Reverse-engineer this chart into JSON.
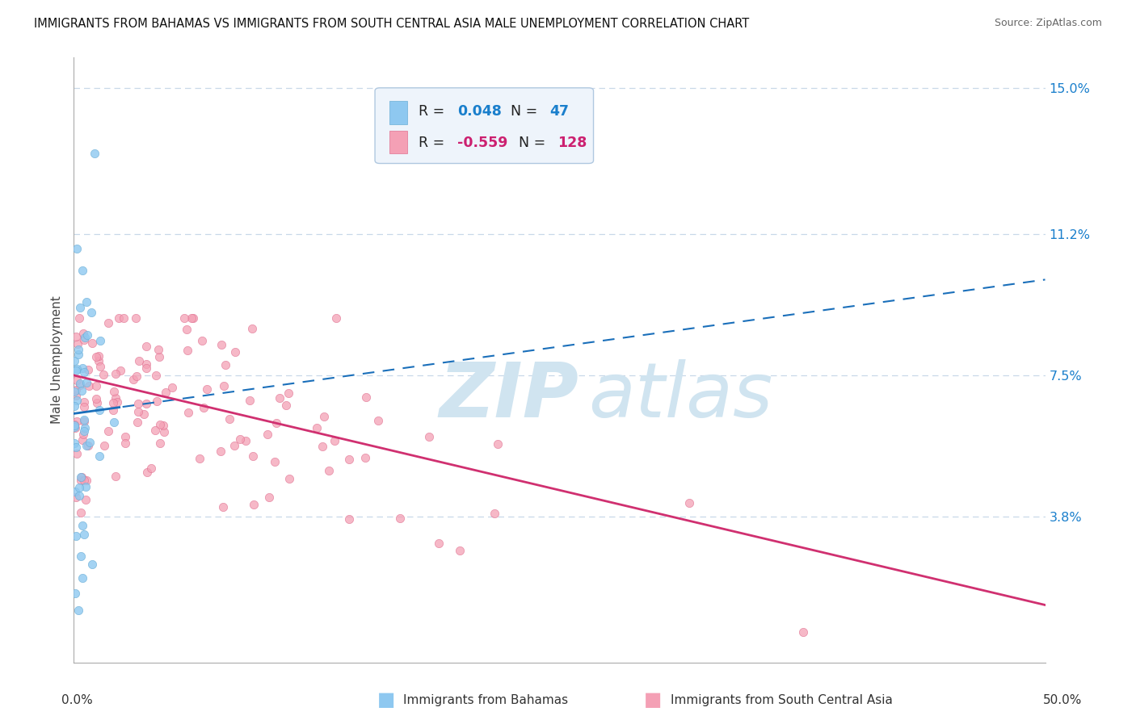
{
  "title": "IMMIGRANTS FROM BAHAMAS VS IMMIGRANTS FROM SOUTH CENTRAL ASIA MALE UNEMPLOYMENT CORRELATION CHART",
  "source": "Source: ZipAtlas.com",
  "ylabel": "Male Unemployment",
  "x_min": 0.0,
  "x_max": 0.5,
  "y_min": 0.0,
  "y_max": 0.158,
  "y_ticks": [
    0.038,
    0.075,
    0.112,
    0.15
  ],
  "y_tick_labels": [
    "3.8%",
    "7.5%",
    "11.2%",
    "15.0%"
  ],
  "series1_color": "#8ec8f0",
  "series1_edge": "#6aaed6",
  "series1_label": "Immigrants from Bahamas",
  "series1_R": 0.048,
  "series1_N": 47,
  "series2_color": "#f4a0b5",
  "series2_edge": "#e07090",
  "series2_label": "Immigrants from South Central Asia",
  "series2_R": -0.559,
  "series2_N": 128,
  "trendline1_color": "#1a6fba",
  "trendline2_color": "#d03070",
  "watermark_color": "#d0e4f0",
  "background_color": "#ffffff",
  "grid_color": "#c8d8e8",
  "legend_bg": "#eef4fb",
  "legend_border": "#b0c8e0",
  "R1_color": "#1a7fcc",
  "R2_color": "#cc2070",
  "N1_color": "#1a7fcc",
  "N2_color": "#cc2070"
}
